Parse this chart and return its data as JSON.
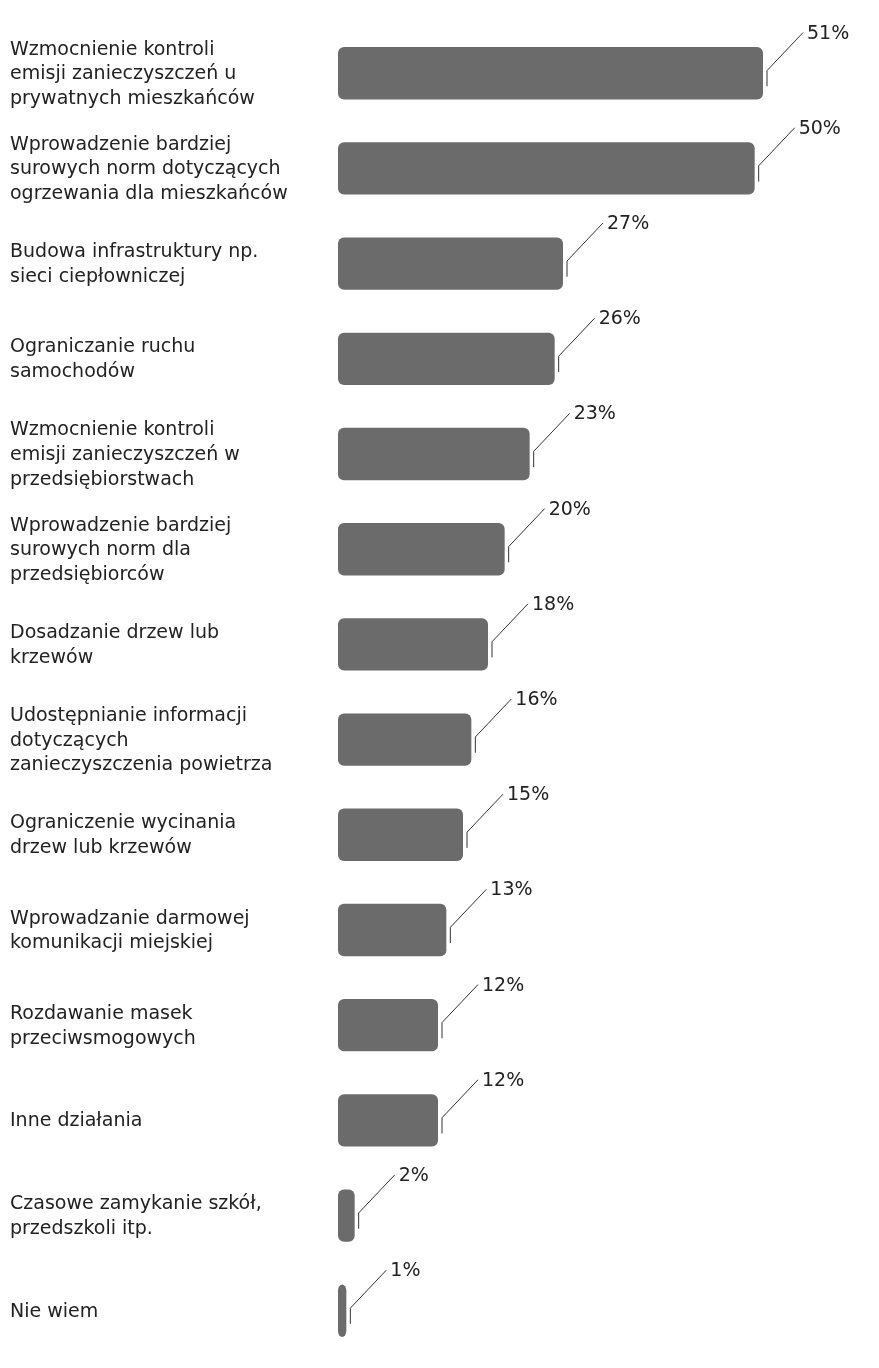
{
  "chart_data": {
    "type": "bar",
    "orientation": "horizontal",
    "color": "#6b6b6b",
    "categories": [
      "Wzmocnienie kontroli emisji zanieczyszczeń u prywatnych mieszkańców",
      "Wprowadzenie bardziej surowych norm dotyczących ogrzewania dla mieszkańców",
      "Budowa infrastruktury np. sieci ciepłowniczej",
      "Ograniczanie ruchu samochodów",
      "Wzmocnienie kontroli emisji zanieczyszczeń w przedsiębiorstwach",
      "Wprowadzenie bardziej surowych norm dla przedsiębiorców",
      "Dosadzanie drzew lub krzewów",
      "Udostępnianie informacji dotyczących zanieczyszczenia powietrza",
      "Ograniczenie wycinania drzew lub krzewów",
      "Wprowadzanie darmowej komunikacji miejskiej",
      "Rozdawanie masek przeciwsmogowych",
      "Inne działania",
      "Czasowe zamykanie szkół, przedszkoli itp.",
      "Nie wiem"
    ],
    "values": [
      51,
      50,
      27,
      26,
      23,
      20,
      18,
      16,
      15,
      13,
      12,
      12,
      2,
      1
    ],
    "value_labels": [
      "51%",
      "50%",
      "27%",
      "26%",
      "23%",
      "20%",
      "18%",
      "16%",
      "15%",
      "13%",
      "12%",
      "12%",
      "2%",
      "1%"
    ],
    "relative": false
  }
}
